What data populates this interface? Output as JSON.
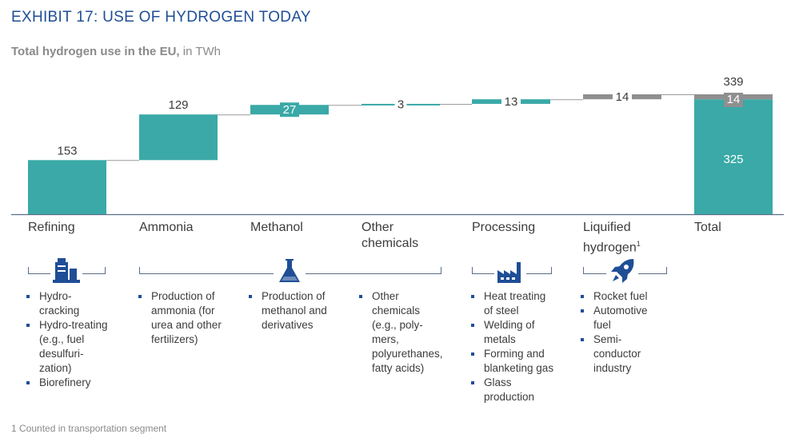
{
  "header": {
    "title": "EXHIBIT 17: USE OF HYDROGEN TODAY",
    "subtitle_bold": "Total hydrogen use in the EU,",
    "subtitle_unit": " in TWh"
  },
  "colors": {
    "teal": "#3aa9a7",
    "grey": "#8f8f8f",
    "title_blue": "#1f4e96",
    "axis": "#5a6c8c"
  },
  "chart_data": {
    "type": "bar",
    "subtype": "waterfall",
    "title": "Total hydrogen use in the EU, in TWh",
    "categories": [
      "Refining",
      "Ammonia",
      "Methanol",
      "Other chemicals",
      "Processing",
      "Liquified hydrogen",
      "Total"
    ],
    "values": [
      153,
      129,
      27,
      3,
      13,
      14,
      339
    ],
    "value_labels": [
      "153",
      "129",
      "27",
      "3",
      "13",
      "14",
      "339"
    ],
    "bar_colors": [
      "teal",
      "teal",
      "teal",
      "teal",
      "teal",
      "grey",
      "mixed"
    ],
    "total_breakdown": {
      "labels": [
        "325",
        "14"
      ],
      "values": [
        325,
        14
      ]
    },
    "ylim": [
      0,
      360
    ]
  },
  "categories": [
    {
      "label": "Refining"
    },
    {
      "label": "Ammonia"
    },
    {
      "label": "Methanol"
    },
    {
      "label": "Other\nchemicals"
    },
    {
      "label": "Processing"
    },
    {
      "label": "Liquified\nhydrogen",
      "sup": "1"
    },
    {
      "label": "Total"
    }
  ],
  "icons": [
    {
      "name": "refinery-icon"
    },
    {
      "name": "flask-icon"
    },
    {
      "name": "factory-icon"
    },
    {
      "name": "rocket-icon"
    }
  ],
  "uses": {
    "refining": [
      "Hydro-\ncracking",
      "Hydro-treating\n(e.g., fuel\ndesulfuri-\nzation)",
      "Biorefinery"
    ],
    "ammonia": [
      "Production of\nammonia (for\nurea and other\nfertilizers)"
    ],
    "methanol": [
      "Production of\nmethanol and\nderivatives"
    ],
    "other": [
      "Other\nchemicals\n(e.g., poly-\nmers,\npolyurethanes,\nfatty acids)"
    ],
    "processing": [
      "Heat treating\nof steel",
      "Welding of\nmetals",
      "Forming and\nblanketing gas",
      "Glass\nproduction"
    ],
    "liquified": [
      "Rocket fuel",
      "Automotive\nfuel",
      "Semi-\nconductor\nindustry"
    ]
  },
  "footnote": "1 Counted in transportation segment"
}
